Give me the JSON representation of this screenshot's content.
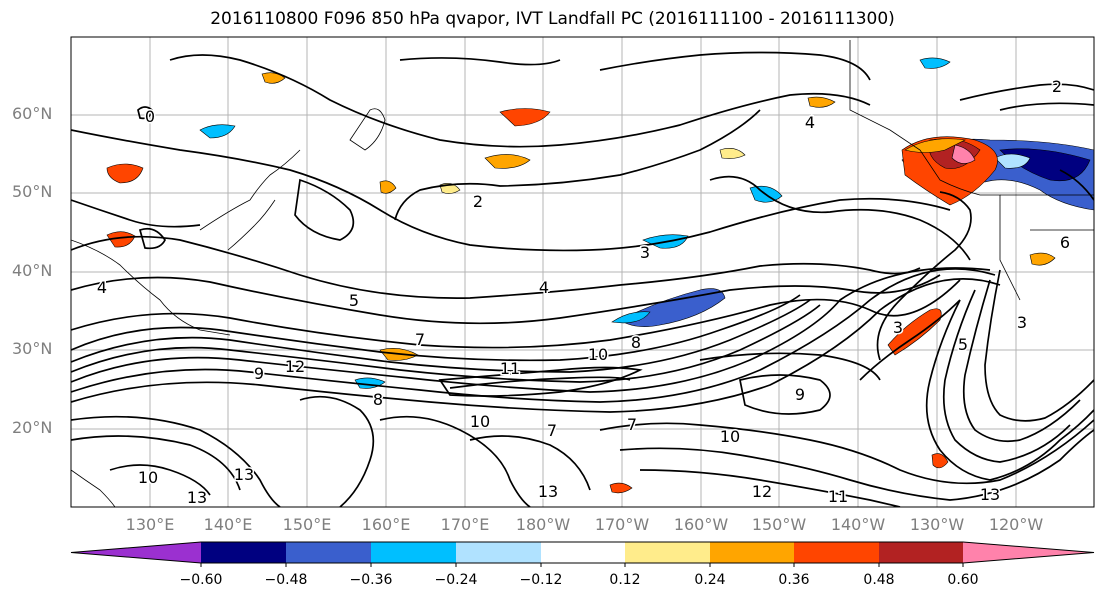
{
  "title": "2016110800 F096 850 hPa qvapor, IVT Landfall PC (2016111100 - 2016111300)",
  "lat_labels": [
    "60°N",
    "50°N",
    "40°N",
    "30°N",
    "20°N"
  ],
  "lon_labels": [
    "130°E",
    "140°E",
    "150°E",
    "160°E",
    "170°E",
    "180°W",
    "170°W",
    "160°W",
    "150°W",
    "140°W",
    "130°W",
    "120°W"
  ],
  "contour_labels": [
    "0",
    "2",
    "4",
    "4",
    "3",
    "3",
    "5",
    "7",
    "8",
    "10",
    "11",
    "9",
    "9",
    "12",
    "12",
    "13",
    "13",
    "10",
    "7",
    "8",
    "13",
    "6",
    "3",
    "4",
    "5",
    "2",
    "10",
    "13",
    "11",
    "10",
    "7"
  ],
  "colorbar": {
    "ticks": [
      "−0.60",
      "−0.48",
      "−0.36",
      "−0.24",
      "−0.12",
      "0.12",
      "0.24",
      "0.36",
      "0.48",
      "0.60"
    ],
    "colors": [
      "#9b30d0",
      "#000080",
      "#3a5fcd",
      "#00bfff",
      "#b0e2ff",
      "#ffffff",
      "#ffec8b",
      "#ffa500",
      "#ff4500",
      "#b22222",
      "#ff82ab",
      "#ff82ab"
    ]
  }
}
